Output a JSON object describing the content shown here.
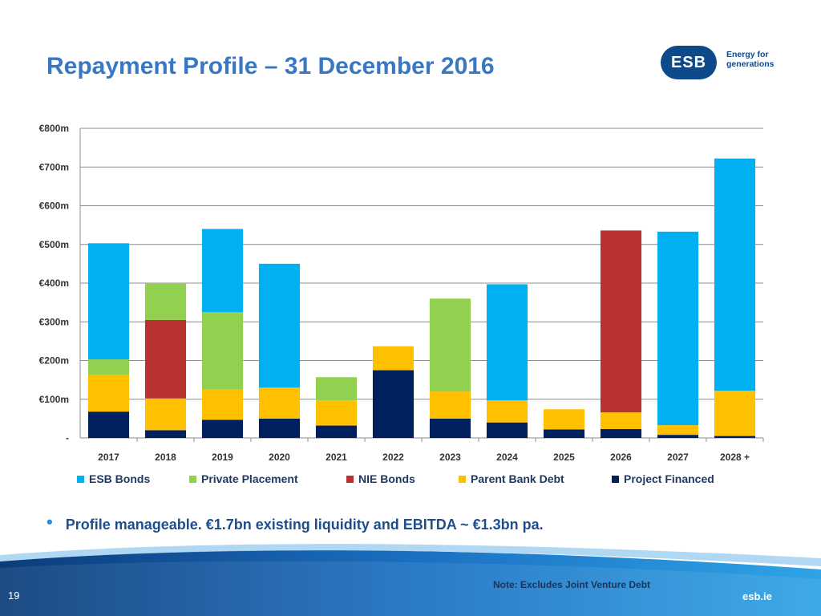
{
  "slide": {
    "title": "Repayment Profile – 31 December 2016",
    "logo_text": "ESB",
    "logo_tagline": "Energy for generations",
    "bullet": "Profile manageable.  €1.7bn existing liquidity and EBITDA ~ €1.3bn pa.",
    "note": "Note: Excludes Joint Venture Debt",
    "page_number": "19",
    "site": "esb.ie",
    "colors": {
      "title": "#3A77C2",
      "brand_navy": "#0E4A8A",
      "footer_blue": "#1A6FC1"
    }
  },
  "chart_data": {
    "type": "bar",
    "stacked": true,
    "title": "",
    "xlabel": "",
    "ylabel": "",
    "ylim": [
      0,
      800
    ],
    "y_ticks": [
      0,
      100,
      200,
      300,
      400,
      500,
      600,
      700,
      800
    ],
    "y_tick_labels": [
      "-",
      "€100m",
      "€200m",
      "€300m",
      "€400m",
      "€500m",
      "€600m",
      "€700m",
      "€800m"
    ],
    "grid": true,
    "legend_position": "bottom",
    "categories": [
      "2017",
      "2018",
      "2019",
      "2020",
      "2021",
      "2022",
      "2023",
      "2024",
      "2025",
      "2026",
      "2027",
      "2028 +"
    ],
    "series": [
      {
        "name": "Project Financed",
        "color": "#002060",
        "values": [
          68,
          20,
          47,
          50,
          32,
          175,
          50,
          40,
          22,
          23,
          8,
          5
        ]
      },
      {
        "name": "Parent Bank Debt",
        "color": "#FFC000",
        "values": [
          95,
          82,
          78,
          80,
          65,
          62,
          70,
          57,
          52,
          43,
          25,
          117
        ]
      },
      {
        "name": "NIE Bonds",
        "color": "#B83232",
        "values": [
          0,
          203,
          0,
          0,
          0,
          0,
          0,
          0,
          0,
          470,
          0,
          0
        ]
      },
      {
        "name": "Private Placement",
        "color": "#92D050",
        "values": [
          40,
          95,
          200,
          0,
          60,
          0,
          240,
          0,
          0,
          0,
          0,
          0
        ]
      },
      {
        "name": "ESB Bonds",
        "color": "#00B0F0",
        "values": [
          300,
          0,
          215,
          320,
          0,
          0,
          0,
          300,
          0,
          0,
          500,
          600
        ]
      }
    ],
    "legend_order": [
      "ESB Bonds",
      "Private Placement",
      "NIE Bonds",
      "Parent Bank Debt",
      "Project Financed"
    ]
  }
}
